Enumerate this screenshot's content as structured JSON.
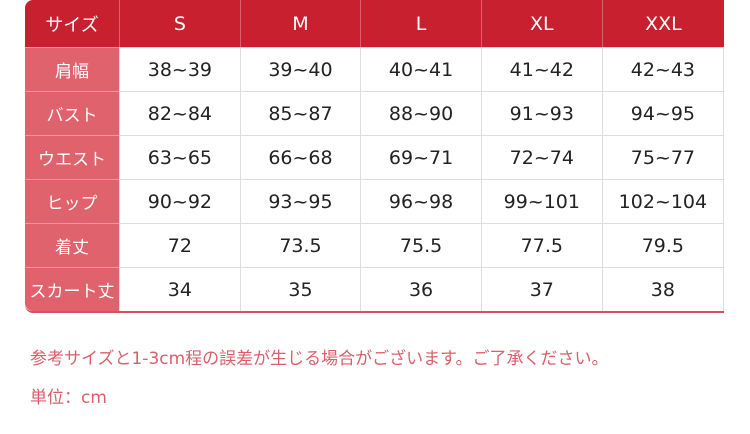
{
  "table": {
    "corner": "サイズ",
    "sizes": [
      "S",
      "M",
      "L",
      "XL",
      "XXL"
    ],
    "rows": [
      {
        "label": "肩幅",
        "values": [
          "38~39",
          "39~40",
          "40~41",
          "41~42",
          "42~43"
        ]
      },
      {
        "label": "バスト",
        "values": [
          "82~84",
          "85~87",
          "88~90",
          "91~93",
          "94~95"
        ]
      },
      {
        "label": "ウエスト",
        "values": [
          "63~65",
          "66~68",
          "69~71",
          "72~74",
          "75~77"
        ]
      },
      {
        "label": "ヒップ",
        "values": [
          "90~92",
          "93~95",
          "96~98",
          "99~101",
          "102~104"
        ]
      },
      {
        "label": "着丈",
        "values": [
          "72",
          "73.5",
          "75.5",
          "77.5",
          "79.5"
        ]
      },
      {
        "label": "スカート丈",
        "values": [
          "34",
          "35",
          "36",
          "37",
          "38"
        ]
      }
    ]
  },
  "notes": {
    "disclaimer": "参考サイズと1-3cm程の誤差が生じる場合がございます。ご了承ください。",
    "unit": "単位：cm"
  },
  "colors": {
    "header": "#c8202f",
    "row_header": "#e0626d",
    "note_text": "#d9606b"
  }
}
